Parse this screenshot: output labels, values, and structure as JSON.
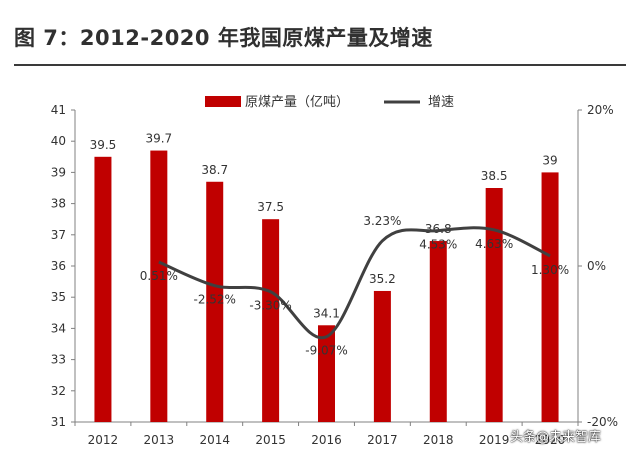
{
  "title": "图 7：2012-2020 年我国原煤产量及增速",
  "watermark": "头条@未来智库",
  "colors": {
    "bar": "#c00000",
    "line": "#404040",
    "axis": "#808080",
    "text": "#333333"
  },
  "chart_data": {
    "type": "bar",
    "categories": [
      "2012",
      "2013",
      "2014",
      "2015",
      "2016",
      "2017",
      "2018",
      "2019",
      "2020"
    ],
    "series": [
      {
        "name": "原煤产量（亿吨）",
        "type": "bar",
        "axis": "left",
        "values": [
          39.5,
          39.7,
          38.7,
          37.5,
          34.1,
          35.2,
          36.8,
          38.5,
          39
        ],
        "labels": [
          "39.5",
          "39.7",
          "38.7",
          "37.5",
          "34.1",
          "35.2",
          "36.8",
          "38.5",
          "39"
        ]
      },
      {
        "name": "增速",
        "type": "line",
        "axis": "right",
        "values": [
          null,
          0.51,
          -2.52,
          -3.3,
          -9.07,
          3.23,
          4.53,
          4.63,
          1.3
        ],
        "labels": [
          "",
          "0.51%",
          "-2.52%",
          "-3.30%",
          "-9.07%",
          "3.23%",
          "4.53%",
          "4.63%",
          "1.30%"
        ]
      }
    ],
    "y_left": {
      "min": 31,
      "max": 41,
      "ticks": [
        "31",
        "32",
        "33",
        "34",
        "35",
        "36",
        "37",
        "38",
        "39",
        "40",
        "41"
      ]
    },
    "y_right": {
      "min": -20,
      "max": 20,
      "ticks": [
        "20%",
        "0%",
        "-20%"
      ]
    },
    "legend_position": "top",
    "grid": false
  }
}
